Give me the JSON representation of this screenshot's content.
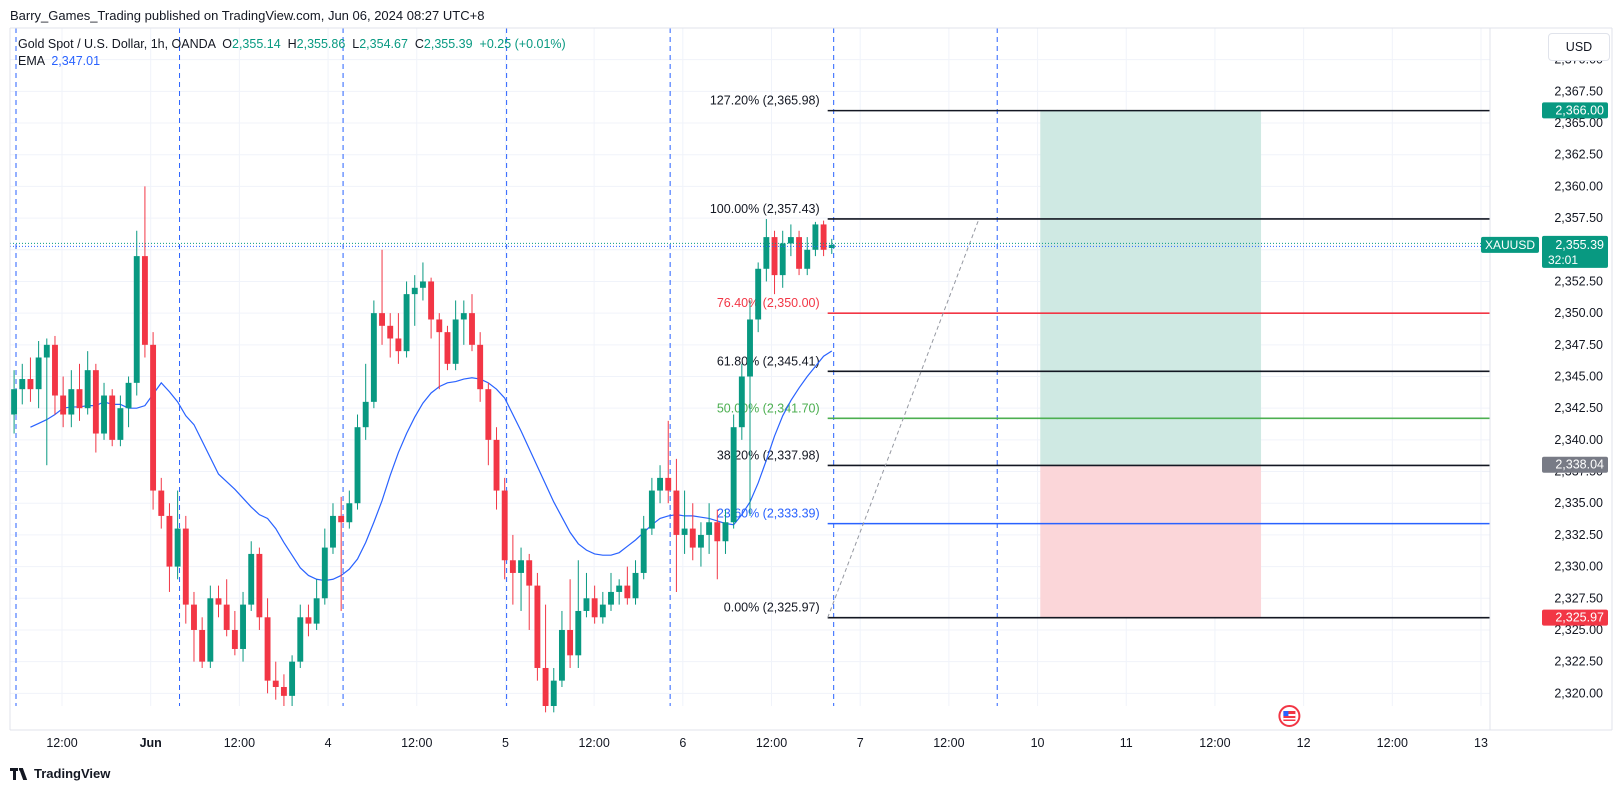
{
  "publisher": "Barry_Games_Trading published on TradingView.com, Jun 06, 2024 08:27 UTC+8",
  "legend": {
    "symbol": "Gold Spot / U.S. Dollar, 1h, OANDA",
    "open_label": "O",
    "open": "2,355.14",
    "high_label": "H",
    "high": "2,355.86",
    "low_label": "L",
    "low": "2,354.67",
    "close_label": "C",
    "close": "2,355.39",
    "change": "+0.25 (+0.01%)",
    "ema_label": "EMA",
    "ema": "2,347.01"
  },
  "currency": "USD",
  "brand": "TradingView",
  "colors": {
    "up": "#089981",
    "down": "#f23645",
    "ema": "#2962ff",
    "profit_zone": "#cfe9e3",
    "loss_zone": "#fbd6d9",
    "fib_black": "#131722",
    "fib_red": "#f23645",
    "fib_green": "#4caf50",
    "fib_blue": "#2962ff"
  },
  "chart_data": {
    "type": "candlestick",
    "symbol": "XAUUSD",
    "y_range": [
      2319,
      2372.5
    ],
    "y_ticks": [
      2320,
      2322.5,
      2325,
      2327.5,
      2330,
      2332.5,
      2335,
      2337.5,
      2340,
      2342.5,
      2345,
      2347.5,
      2350,
      2352.5,
      2355,
      2357.5,
      2360,
      2362.5,
      2365,
      2367.5,
      2370
    ],
    "y_tick_labels": [
      "2,320.00",
      "2,322.50",
      "2,325.00",
      "2,327.50",
      "2,330.00",
      "2,332.50",
      "2,335.00",
      "2,337.50",
      "2,340.00",
      "2,342.50",
      "2,345.00",
      "2,347.50",
      "2,350.00",
      "2,352.50",
      "2,355.00",
      "2,357.50",
      "2,360.00",
      "2,362.50",
      "2,365.00",
      "2,367.50",
      "2,370.00"
    ],
    "x_labels": [
      "12:00",
      "Jun",
      "12:00",
      "4",
      "12:00",
      "5",
      "12:00",
      "6",
      "12:00",
      "7",
      "12:00",
      "10",
      "11",
      "12:00",
      "12",
      "12:00",
      "13"
    ],
    "bars_total": 181,
    "candles": [
      {
        "o": 2342.0,
        "c": 2344.0,
        "h": 2345.5,
        "l": 2340.5
      },
      {
        "o": 2344.0,
        "c": 2344.8,
        "h": 2346.0,
        "l": 2342.8
      },
      {
        "o": 2344.8,
        "c": 2344.0,
        "h": 2346.5,
        "l": 2343.0
      },
      {
        "o": 2344.0,
        "c": 2346.5,
        "h": 2347.8,
        "l": 2342.5
      },
      {
        "o": 2346.5,
        "c": 2347.5,
        "h": 2348.0,
        "l": 2338.0
      },
      {
        "o": 2347.5,
        "c": 2343.5,
        "h": 2348.2,
        "l": 2342.0
      },
      {
        "o": 2343.5,
        "c": 2342.0,
        "h": 2345.0,
        "l": 2341.0
      },
      {
        "o": 2342.0,
        "c": 2344.0,
        "h": 2345.5,
        "l": 2341.0
      },
      {
        "o": 2344.0,
        "c": 2342.5,
        "h": 2346.0,
        "l": 2341.5
      },
      {
        "o": 2342.5,
        "c": 2345.5,
        "h": 2347.0,
        "l": 2342.0
      },
      {
        "o": 2345.5,
        "c": 2340.5,
        "h": 2346.0,
        "l": 2339.0
      },
      {
        "o": 2340.5,
        "c": 2343.5,
        "h": 2344.5,
        "l": 2340.0
      },
      {
        "o": 2343.5,
        "c": 2340.0,
        "h": 2344.0,
        "l": 2339.5
      },
      {
        "o": 2340.0,
        "c": 2342.5,
        "h": 2343.5,
        "l": 2339.5
      },
      {
        "o": 2342.5,
        "c": 2344.5,
        "h": 2345.0,
        "l": 2341.0
      },
      {
        "o": 2344.5,
        "c": 2354.5,
        "h": 2356.5,
        "l": 2343.5
      },
      {
        "o": 2354.5,
        "c": 2347.5,
        "h": 2360.0,
        "l": 2346.5
      },
      {
        "o": 2347.5,
        "c": 2336.0,
        "h": 2348.5,
        "l": 2334.5
      },
      {
        "o": 2336.0,
        "c": 2334.0,
        "h": 2337.0,
        "l": 2333.0
      },
      {
        "o": 2334.0,
        "c": 2330.0,
        "h": 2335.0,
        "l": 2328.0
      },
      {
        "o": 2330.0,
        "c": 2333.0,
        "h": 2336.0,
        "l": 2329.0
      },
      {
        "o": 2333.0,
        "c": 2327.0,
        "h": 2334.0,
        "l": 2325.5
      },
      {
        "o": 2327.0,
        "c": 2325.0,
        "h": 2328.0,
        "l": 2322.5
      },
      {
        "o": 2325.0,
        "c": 2322.5,
        "h": 2326.0,
        "l": 2322.0
      },
      {
        "o": 2322.5,
        "c": 2327.5,
        "h": 2328.5,
        "l": 2322.0
      },
      {
        "o": 2327.5,
        "c": 2327.0,
        "h": 2328.5,
        "l": 2326.0
      },
      {
        "o": 2327.0,
        "c": 2325.0,
        "h": 2329.0,
        "l": 2324.5
      },
      {
        "o": 2325.0,
        "c": 2323.5,
        "h": 2326.5,
        "l": 2323.0
      },
      {
        "o": 2323.5,
        "c": 2327.0,
        "h": 2328.0,
        "l": 2322.5
      },
      {
        "o": 2327.0,
        "c": 2331.0,
        "h": 2332.0,
        "l": 2326.5
      },
      {
        "o": 2331.0,
        "c": 2326.0,
        "h": 2331.5,
        "l": 2325.0
      },
      {
        "o": 2326.0,
        "c": 2321.0,
        "h": 2327.5,
        "l": 2320.0
      },
      {
        "o": 2321.0,
        "c": 2320.5,
        "h": 2322.5,
        "l": 2319.5
      },
      {
        "o": 2320.5,
        "c": 2319.8,
        "h": 2321.5,
        "l": 2319.0
      },
      {
        "o": 2319.8,
        "c": 2322.5,
        "h": 2323.0,
        "l": 2319.0
      },
      {
        "o": 2322.5,
        "c": 2326.0,
        "h": 2327.0,
        "l": 2322.0
      },
      {
        "o": 2326.0,
        "c": 2325.5,
        "h": 2327.0,
        "l": 2324.5
      },
      {
        "o": 2325.5,
        "c": 2327.5,
        "h": 2329.0,
        "l": 2325.0
      },
      {
        "o": 2327.5,
        "c": 2331.5,
        "h": 2333.0,
        "l": 2327.0
      },
      {
        "o": 2331.5,
        "c": 2334.0,
        "h": 2335.0,
        "l": 2331.0
      },
      {
        "o": 2334.0,
        "c": 2333.5,
        "h": 2335.5,
        "l": 2326.5
      },
      {
        "o": 2333.5,
        "c": 2335.0,
        "h": 2336.0,
        "l": 2333.0
      },
      {
        "o": 2335.0,
        "c": 2341.0,
        "h": 2342.0,
        "l": 2334.5
      },
      {
        "o": 2341.0,
        "c": 2343.0,
        "h": 2346.0,
        "l": 2340.0
      },
      {
        "o": 2343.0,
        "c": 2350.0,
        "h": 2351.0,
        "l": 2342.5
      },
      {
        "o": 2350.0,
        "c": 2349.0,
        "h": 2355.0,
        "l": 2347.5
      },
      {
        "o": 2349.0,
        "c": 2348.0,
        "h": 2350.0,
        "l": 2346.5
      },
      {
        "o": 2348.0,
        "c": 2347.0,
        "h": 2350.0,
        "l": 2346.0
      },
      {
        "o": 2347.0,
        "c": 2351.5,
        "h": 2352.5,
        "l": 2346.5
      },
      {
        "o": 2351.5,
        "c": 2352.0,
        "h": 2353.0,
        "l": 2349.0
      },
      {
        "o": 2352.0,
        "c": 2352.5,
        "h": 2354.0,
        "l": 2351.0
      },
      {
        "o": 2352.5,
        "c": 2349.5,
        "h": 2352.8,
        "l": 2348.0
      },
      {
        "o": 2349.5,
        "c": 2348.5,
        "h": 2350.0,
        "l": 2344.0
      },
      {
        "o": 2348.5,
        "c": 2346.0,
        "h": 2349.0,
        "l": 2345.5
      },
      {
        "o": 2346.0,
        "c": 2349.5,
        "h": 2351.0,
        "l": 2345.5
      },
      {
        "o": 2349.5,
        "c": 2350.0,
        "h": 2351.0,
        "l": 2347.5
      },
      {
        "o": 2350.0,
        "c": 2347.5,
        "h": 2351.5,
        "l": 2347.0
      },
      {
        "o": 2347.5,
        "c": 2344.0,
        "h": 2348.5,
        "l": 2343.0
      },
      {
        "o": 2344.0,
        "c": 2340.0,
        "h": 2344.5,
        "l": 2338.0
      },
      {
        "o": 2340.0,
        "c": 2336.0,
        "h": 2341.0,
        "l": 2334.5
      },
      {
        "o": 2336.0,
        "c": 2330.5,
        "h": 2337.0,
        "l": 2329.0
      },
      {
        "o": 2330.5,
        "c": 2329.5,
        "h": 2332.5,
        "l": 2327.0
      },
      {
        "o": 2329.5,
        "c": 2330.5,
        "h": 2331.5,
        "l": 2326.5
      },
      {
        "o": 2330.5,
        "c": 2328.5,
        "h": 2331.0,
        "l": 2325.0
      },
      {
        "o": 2328.5,
        "c": 2322.0,
        "h": 2329.5,
        "l": 2321.0
      },
      {
        "o": 2322.0,
        "c": 2319.0,
        "h": 2327.0,
        "l": 2318.5
      },
      {
        "o": 2319.0,
        "c": 2321.0,
        "h": 2322.0,
        "l": 2318.5
      },
      {
        "o": 2321.0,
        "c": 2325.0,
        "h": 2326.5,
        "l": 2320.5
      },
      {
        "o": 2325.0,
        "c": 2323.0,
        "h": 2329.0,
        "l": 2322.0
      },
      {
        "o": 2323.0,
        "c": 2326.5,
        "h": 2330.5,
        "l": 2322.0
      },
      {
        "o": 2326.5,
        "c": 2327.5,
        "h": 2329.5,
        "l": 2326.0
      },
      {
        "o": 2327.5,
        "c": 2326.0,
        "h": 2328.5,
        "l": 2325.5
      },
      {
        "o": 2326.0,
        "c": 2327.0,
        "h": 2328.0,
        "l": 2325.5
      },
      {
        "o": 2327.0,
        "c": 2328.0,
        "h": 2329.5,
        "l": 2326.5
      },
      {
        "o": 2328.0,
        "c": 2328.5,
        "h": 2329.0,
        "l": 2327.0
      },
      {
        "o": 2328.5,
        "c": 2327.5,
        "h": 2330.0,
        "l": 2327.0
      },
      {
        "o": 2327.5,
        "c": 2329.5,
        "h": 2330.5,
        "l": 2327.0
      },
      {
        "o": 2329.5,
        "c": 2333.0,
        "h": 2334.0,
        "l": 2329.0
      },
      {
        "o": 2333.0,
        "c": 2336.0,
        "h": 2337.0,
        "l": 2332.5
      },
      {
        "o": 2336.0,
        "c": 2337.0,
        "h": 2338.0,
        "l": 2335.0
      },
      {
        "o": 2337.0,
        "c": 2336.0,
        "h": 2341.5,
        "l": 2335.0
      },
      {
        "o": 2336.0,
        "c": 2332.5,
        "h": 2338.5,
        "l": 2328.0
      },
      {
        "o": 2332.5,
        "c": 2333.0,
        "h": 2336.0,
        "l": 2331.0
      },
      {
        "o": 2333.0,
        "c": 2331.5,
        "h": 2335.0,
        "l": 2330.5
      },
      {
        "o": 2331.5,
        "c": 2332.5,
        "h": 2333.5,
        "l": 2330.0
      },
      {
        "o": 2332.5,
        "c": 2333.5,
        "h": 2335.0,
        "l": 2331.0
      },
      {
        "o": 2333.5,
        "c": 2332.0,
        "h": 2334.5,
        "l": 2329.0
      },
      {
        "o": 2332.0,
        "c": 2333.5,
        "h": 2334.5,
        "l": 2331.0
      },
      {
        "o": 2333.5,
        "c": 2341.0,
        "h": 2342.0,
        "l": 2333.0
      },
      {
        "o": 2341.0,
        "c": 2345.0,
        "h": 2346.0,
        "l": 2340.0
      },
      {
        "o": 2345.0,
        "c": 2349.5,
        "h": 2351.0,
        "l": 2334.0
      },
      {
        "o": 2349.5,
        "c": 2353.5,
        "h": 2354.0,
        "l": 2348.5
      },
      {
        "o": 2353.5,
        "c": 2356.0,
        "h": 2357.43,
        "l": 2352.5
      },
      {
        "o": 2356.0,
        "c": 2353.0,
        "h": 2356.5,
        "l": 2351.5
      },
      {
        "o": 2353.0,
        "c": 2355.5,
        "h": 2356.5,
        "l": 2352.0
      },
      {
        "o": 2355.5,
        "c": 2356.0,
        "h": 2357.0,
        "l": 2354.5
      },
      {
        "o": 2356.0,
        "c": 2353.5,
        "h": 2356.5,
        "l": 2353.0
      },
      {
        "o": 2353.5,
        "c": 2355.0,
        "h": 2356.0,
        "l": 2353.0
      },
      {
        "o": 2355.0,
        "c": 2357.0,
        "h": 2357.2,
        "l": 2354.5
      },
      {
        "o": 2357.0,
        "c": 2355.0,
        "h": 2357.3,
        "l": 2354.5
      },
      {
        "o": 2355.14,
        "c": 2355.39,
        "h": 2355.86,
        "l": 2354.67
      }
    ],
    "ema": [
      2341.0,
      2341.3,
      2341.6,
      2342.0,
      2342.5,
      2342.6,
      2342.6,
      2342.7,
      2342.7,
      2343.0,
      2342.8,
      2342.8,
      2342.5,
      2342.5,
      2342.7,
      2343.6,
      2344.5,
      2343.8,
      2343.0,
      2341.9,
      2341.2,
      2339.9,
      2338.6,
      2337.3,
      2336.7,
      2336.1,
      2335.4,
      2334.7,
      2334.1,
      2333.8,
      2333.0,
      2331.9,
      2330.9,
      2329.9,
      2329.3,
      2329.0,
      2328.9,
      2329.0,
      2329.3,
      2329.8,
      2330.6,
      2331.9,
      2333.5,
      2335.2,
      2337.2,
      2339.0,
      2340.5,
      2341.8,
      2342.9,
      2343.7,
      2344.2,
      2344.5,
      2344.6,
      2344.8,
      2344.9,
      2344.8,
      2344.5,
      2344.0,
      2343.3,
      2342.0,
      2340.7,
      2339.3,
      2337.9,
      2336.5,
      2335.1,
      2333.9,
      2332.7,
      2331.8,
      2331.3,
      2331.0,
      2330.9,
      2330.9,
      2331.1,
      2331.6,
      2332.1,
      2332.7,
      2333.3,
      2333.8,
      2334.0,
      2334.1,
      2334.0,
      2334.0,
      2333.9,
      2333.8,
      2333.6,
      2333.4,
      2333.3,
      2334.1,
      2335.1,
      2336.6,
      2338.4,
      2340.3,
      2341.9,
      2343.1,
      2344.1,
      2345.0,
      2345.8,
      2346.6,
      2347.01
    ],
    "last_price": {
      "symbol": "XAUUSD",
      "price": 2355.39,
      "label": "2,355.39",
      "countdown": "32:01"
    },
    "fibonacci": {
      "start_bar": 100,
      "end_bar": 181,
      "levels": [
        {
          "ratio": 1.272,
          "price": 2365.98,
          "label": "127.20% (2,365.98)",
          "color": "#131722"
        },
        {
          "ratio": 1.0,
          "price": 2357.43,
          "label": "100.00% (2,357.43)",
          "color": "#131722"
        },
        {
          "ratio": 0.764,
          "price": 2350.0,
          "label": "76.40% (2,350.00)",
          "color": "#f23645"
        },
        {
          "ratio": 0.618,
          "price": 2345.41,
          "label": "61.80% (2,345.41)",
          "color": "#131722"
        },
        {
          "ratio": 0.5,
          "price": 2341.7,
          "label": "50.00% (2,341.70)",
          "color": "#4caf50"
        },
        {
          "ratio": 0.382,
          "price": 2337.98,
          "label": "38.20% (2,337.98)",
          "color": "#131722"
        },
        {
          "ratio": 0.236,
          "price": 2333.39,
          "label": "23.60% (2,333.39)",
          "color": "#2962ff"
        },
        {
          "ratio": 0.0,
          "price": 2325.97,
          "label": "0.00% (2,325.97)",
          "color": "#131722"
        }
      ]
    },
    "trendline": {
      "from": {
        "bar": 100,
        "price": 2325.97
      },
      "to": {
        "bar": 118,
        "price": 2357.43
      }
    },
    "position": {
      "type": "long",
      "start_bar": 126,
      "end_bar": 153,
      "entry": 2338.04,
      "target": 2366.0,
      "stop": 2325.97,
      "labels": {
        "target": "2,366.00",
        "entry": "2,338.04",
        "stop": "2,325.97"
      }
    },
    "session_breaks_bars": [
      0,
      20,
      40,
      60,
      80,
      100,
      120
    ],
    "event_marker_bar": 155
  }
}
